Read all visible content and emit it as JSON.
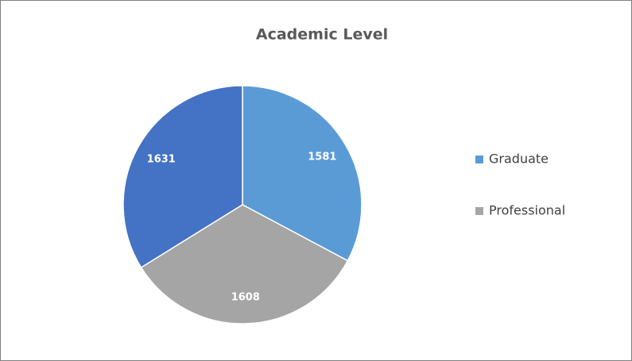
{
  "chart_data": {
    "type": "pie",
    "title": "Academic Level",
    "categories": [
      "Graduate",
      "Professional",
      null
    ],
    "values": [
      1581,
      1608,
      1631
    ],
    "colors": [
      "#5b9bd5",
      "#a5a5a5",
      "#4472c4"
    ],
    "legend": "right"
  }
}
